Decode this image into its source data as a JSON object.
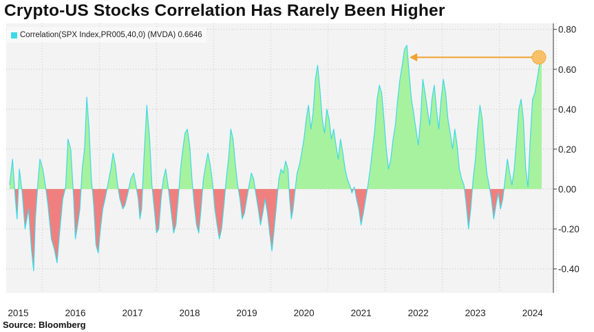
{
  "title": "Crypto-US Stocks Correlation Has Rarely Been Higher",
  "source": "Source: Bloomberg",
  "legend": {
    "label": "Correlation(SPX Index,PR005,40,0) (MVDA) 0.6646"
  },
  "colors": {
    "line": "#3fd8e6",
    "positive_fill": "#a7f29e",
    "negative_fill": "#f08080",
    "annotation": "#f0a22e"
  },
  "chart_data": {
    "type": "area",
    "title": "Crypto-US Stocks Correlation Has Rarely Been Higher",
    "series": [
      {
        "name": "Correlation(SPX Index,PR005,40,0) (MVDA)",
        "last_value": 0.6646,
        "points": [
          [
            2014.95,
            0.02
          ],
          [
            2015.0,
            0.15
          ],
          [
            2015.05,
            -0.05
          ],
          [
            2015.08,
            -0.15
          ],
          [
            2015.12,
            0.1
          ],
          [
            2015.17,
            -0.02
          ],
          [
            2015.22,
            -0.2
          ],
          [
            2015.28,
            -0.1
          ],
          [
            2015.33,
            -0.3
          ],
          [
            2015.37,
            -0.41
          ],
          [
            2015.4,
            -0.15
          ],
          [
            2015.45,
            0.05
          ],
          [
            2015.48,
            0.15
          ],
          [
            2015.53,
            0.1
          ],
          [
            2015.58,
            0.01
          ],
          [
            2015.62,
            -0.08
          ],
          [
            2015.68,
            -0.25
          ],
          [
            2015.73,
            -0.3
          ],
          [
            2015.78,
            -0.37
          ],
          [
            2015.83,
            -0.2
          ],
          [
            2015.88,
            -0.05
          ],
          [
            2015.93,
            0.01
          ],
          [
            2015.97,
            0.25
          ],
          [
            2016.02,
            0.2
          ],
          [
            2016.07,
            -0.05
          ],
          [
            2016.1,
            -0.25
          ],
          [
            2016.14,
            -0.18
          ],
          [
            2016.18,
            -0.1
          ],
          [
            2016.22,
            0.1
          ],
          [
            2016.26,
            0.2
          ],
          [
            2016.3,
            0.46
          ],
          [
            2016.34,
            0.3
          ],
          [
            2016.38,
            0.05
          ],
          [
            2016.42,
            -0.08
          ],
          [
            2016.46,
            -0.28
          ],
          [
            2016.5,
            -0.32
          ],
          [
            2016.54,
            -0.2
          ],
          [
            2016.58,
            -0.1
          ],
          [
            2016.62,
            -0.05
          ],
          [
            2016.66,
            0.01
          ],
          [
            2016.72,
            0.1
          ],
          [
            2016.76,
            0.18
          ],
          [
            2016.8,
            0.12
          ],
          [
            2016.84,
            0.02
          ],
          [
            2016.88,
            -0.05
          ],
          [
            2016.93,
            -0.1
          ],
          [
            2016.97,
            -0.08
          ],
          [
            2017.02,
            -0.02
          ],
          [
            2017.07,
            0.05
          ],
          [
            2017.12,
            0.08
          ],
          [
            2017.16,
            0.02
          ],
          [
            2017.2,
            -0.05
          ],
          [
            2017.23,
            -0.15
          ],
          [
            2017.26,
            -0.1
          ],
          [
            2017.3,
            0.15
          ],
          [
            2017.35,
            0.42
          ],
          [
            2017.4,
            0.25
          ],
          [
            2017.44,
            0.02
          ],
          [
            2017.48,
            -0.1
          ],
          [
            2017.52,
            -0.22
          ],
          [
            2017.56,
            -0.2
          ],
          [
            2017.6,
            -0.05
          ],
          [
            2017.64,
            0.05
          ],
          [
            2017.68,
            0.1
          ],
          [
            2017.72,
            0.02
          ],
          [
            2017.77,
            -0.1
          ],
          [
            2017.82,
            -0.22
          ],
          [
            2017.86,
            -0.18
          ],
          [
            2017.9,
            -0.05
          ],
          [
            2017.94,
            0.1
          ],
          [
            2017.98,
            0.2
          ],
          [
            2018.02,
            0.28
          ],
          [
            2018.06,
            0.3
          ],
          [
            2018.1,
            0.22
          ],
          [
            2018.14,
            0.05
          ],
          [
            2018.18,
            -0.08
          ],
          [
            2018.22,
            -0.18
          ],
          [
            2018.26,
            -0.22
          ],
          [
            2018.3,
            -0.1
          ],
          [
            2018.34,
            0.05
          ],
          [
            2018.38,
            0.12
          ],
          [
            2018.42,
            0.18
          ],
          [
            2018.46,
            0.12
          ],
          [
            2018.5,
            0.03
          ],
          [
            2018.54,
            -0.1
          ],
          [
            2018.58,
            -0.18
          ],
          [
            2018.62,
            -0.25
          ],
          [
            2018.66,
            -0.2
          ],
          [
            2018.7,
            -0.08
          ],
          [
            2018.74,
            0.05
          ],
          [
            2018.78,
            0.15
          ],
          [
            2018.82,
            0.3
          ],
          [
            2018.86,
            0.25
          ],
          [
            2018.9,
            0.12
          ],
          [
            2018.94,
            0.02
          ],
          [
            2018.98,
            -0.05
          ],
          [
            2019.02,
            -0.15
          ],
          [
            2019.06,
            -0.12
          ],
          [
            2019.1,
            -0.05
          ],
          [
            2019.14,
            0.02
          ],
          [
            2019.18,
            0.08
          ],
          [
            2019.22,
            0.05
          ],
          [
            2019.26,
            -0.03
          ],
          [
            2019.3,
            -0.1
          ],
          [
            2019.34,
            -0.18
          ],
          [
            2019.38,
            -0.12
          ],
          [
            2019.42,
            -0.05
          ],
          [
            2019.46,
            -0.12
          ],
          [
            2019.5,
            -0.22
          ],
          [
            2019.54,
            -0.31
          ],
          [
            2019.58,
            -0.2
          ],
          [
            2019.62,
            -0.08
          ],
          [
            2019.66,
            0.05
          ],
          [
            2019.7,
            0.1
          ],
          [
            2019.74,
            0.08
          ],
          [
            2019.78,
            0.14
          ],
          [
            2019.82,
            0.1
          ],
          [
            2019.85,
            -0.05
          ],
          [
            2019.88,
            -0.15
          ],
          [
            2019.91,
            -0.1
          ],
          [
            2019.94,
            -0.02
          ],
          [
            2019.98,
            0.08
          ],
          [
            2020.02,
            0.12
          ],
          [
            2020.06,
            0.18
          ],
          [
            2020.1,
            0.25
          ],
          [
            2020.14,
            0.35
          ],
          [
            2020.18,
            0.42
          ],
          [
            2020.22,
            0.3
          ],
          [
            2020.26,
            0.38
          ],
          [
            2020.3,
            0.55
          ],
          [
            2020.34,
            0.62
          ],
          [
            2020.38,
            0.5
          ],
          [
            2020.42,
            0.35
          ],
          [
            2020.46,
            0.28
          ],
          [
            2020.5,
            0.4
          ],
          [
            2020.54,
            0.35
          ],
          [
            2020.58,
            0.25
          ],
          [
            2020.62,
            0.3
          ],
          [
            2020.66,
            0.22
          ],
          [
            2020.7,
            0.15
          ],
          [
            2020.74,
            0.25
          ],
          [
            2020.78,
            0.18
          ],
          [
            2020.82,
            0.1
          ],
          [
            2020.86,
            0.05
          ],
          [
            2020.9,
            0.02
          ],
          [
            2020.94,
            -0.02
          ],
          [
            2020.98,
            0.01
          ],
          [
            2021.02,
            -0.05
          ],
          [
            2021.06,
            -0.1
          ],
          [
            2021.1,
            -0.18
          ],
          [
            2021.14,
            -0.12
          ],
          [
            2021.18,
            -0.05
          ],
          [
            2021.22,
            0.02
          ],
          [
            2021.26,
            0.1
          ],
          [
            2021.3,
            0.2
          ],
          [
            2021.34,
            0.3
          ],
          [
            2021.38,
            0.45
          ],
          [
            2021.42,
            0.52
          ],
          [
            2021.46,
            0.48
          ],
          [
            2021.5,
            0.35
          ],
          [
            2021.54,
            0.2
          ],
          [
            2021.58,
            0.1
          ],
          [
            2021.62,
            0.15
          ],
          [
            2021.66,
            0.25
          ],
          [
            2021.7,
            0.32
          ],
          [
            2021.74,
            0.45
          ],
          [
            2021.78,
            0.55
          ],
          [
            2021.82,
            0.62
          ],
          [
            2021.86,
            0.7
          ],
          [
            2021.9,
            0.72
          ],
          [
            2021.94,
            0.58
          ],
          [
            2021.98,
            0.45
          ],
          [
            2022.02,
            0.38
          ],
          [
            2022.06,
            0.3
          ],
          [
            2022.1,
            0.22
          ],
          [
            2022.14,
            0.35
          ],
          [
            2022.18,
            0.55
          ],
          [
            2022.22,
            0.48
          ],
          [
            2022.26,
            0.4
          ],
          [
            2022.3,
            0.32
          ],
          [
            2022.34,
            0.45
          ],
          [
            2022.38,
            0.52
          ],
          [
            2022.42,
            0.4
          ],
          [
            2022.46,
            0.3
          ],
          [
            2022.5,
            0.45
          ],
          [
            2022.54,
            0.55
          ],
          [
            2022.58,
            0.48
          ],
          [
            2022.62,
            0.35
          ],
          [
            2022.66,
            0.28
          ],
          [
            2022.7,
            0.2
          ],
          [
            2022.74,
            0.3
          ],
          [
            2022.78,
            0.22
          ],
          [
            2022.82,
            0.1
          ],
          [
            2022.86,
            0.05
          ],
          [
            2022.9,
            0.02
          ],
          [
            2022.94,
            -0.08
          ],
          [
            2022.98,
            -0.2
          ],
          [
            2023.02,
            -0.1
          ],
          [
            2023.06,
            0.05
          ],
          [
            2023.1,
            0.15
          ],
          [
            2023.14,
            0.3
          ],
          [
            2023.18,
            0.42
          ],
          [
            2023.22,
            0.35
          ],
          [
            2023.26,
            0.2
          ],
          [
            2023.3,
            0.08
          ],
          [
            2023.34,
            0.02
          ],
          [
            2023.38,
            -0.05
          ],
          [
            2023.42,
            -0.15
          ],
          [
            2023.46,
            -0.08
          ],
          [
            2023.5,
            -0.02
          ],
          [
            2023.54,
            -0.1
          ],
          [
            2023.58,
            -0.05
          ],
          [
            2023.62,
            0.05
          ],
          [
            2023.66,
            0.15
          ],
          [
            2023.7,
            0.08
          ],
          [
            2023.74,
            0.02
          ],
          [
            2023.78,
            0.1
          ],
          [
            2023.82,
            0.25
          ],
          [
            2023.86,
            0.4
          ],
          [
            2023.9,
            0.45
          ],
          [
            2023.94,
            0.35
          ],
          [
            2023.98,
            0.1
          ],
          [
            2024.02,
            0.01
          ],
          [
            2024.06,
            0.25
          ],
          [
            2024.1,
            0.45
          ],
          [
            2024.14,
            0.48
          ],
          [
            2024.18,
            0.55
          ],
          [
            2024.22,
            0.62
          ],
          [
            2024.26,
            0.66
          ]
        ]
      }
    ],
    "x_ticks": [
      2015,
      2016,
      2017,
      2018,
      2019,
      2020,
      2021,
      2022,
      2023,
      2024
    ],
    "xlim": [
      2014.95,
      2024.26
    ],
    "y_ticks": [
      "0.80",
      "0.60",
      "0.40",
      "0.20",
      "0.00",
      "-0.20",
      "-0.40"
    ],
    "ylim": [
      -0.52,
      0.83
    ],
    "yaxis_position": "right",
    "legend_position": "top-left",
    "annotation": {
      "type": "arrow",
      "from_x": 2024.26,
      "from_y": 0.66,
      "to_x": 2021.95,
      "to_y": 0.66
    }
  }
}
